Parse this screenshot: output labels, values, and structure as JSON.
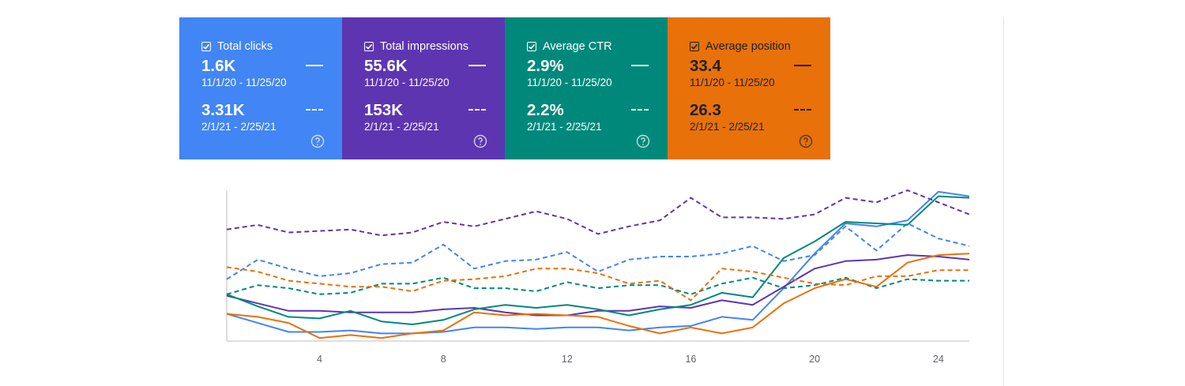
{
  "cards": [
    {
      "title": "Total clicks",
      "color": "#4285f4",
      "dark": false,
      "current_value": "1.6K",
      "current_range": "11/1/20 - 11/25/20",
      "previous_value": "3.31K",
      "previous_range": "2/1/21 - 2/25/21"
    },
    {
      "title": "Total impressions",
      "color": "#5e35b1",
      "dark": false,
      "current_value": "55.6K",
      "current_range": "11/1/20 - 11/25/20",
      "previous_value": "153K",
      "previous_range": "2/1/21 - 2/25/21"
    },
    {
      "title": "Average CTR",
      "color": "#00897b",
      "dark": false,
      "current_value": "2.9%",
      "current_range": "11/1/20 - 11/25/20",
      "previous_value": "2.2%",
      "previous_range": "2/1/21 - 2/25/21"
    },
    {
      "title": "Average position",
      "color": "#e8710a",
      "dark": true,
      "current_value": "33.4",
      "current_range": "11/1/20 - 11/25/20",
      "previous_value": "26.3",
      "previous_range": "2/1/21 - 2/25/21"
    }
  ],
  "chart_data": {
    "type": "line",
    "x": [
      1,
      2,
      3,
      4,
      5,
      6,
      7,
      8,
      9,
      10,
      11,
      12,
      13,
      14,
      15,
      16,
      17,
      18,
      19,
      20,
      21,
      22,
      23,
      24,
      25
    ],
    "xticks": [
      "4",
      "8",
      "12",
      "16",
      "20",
      "24"
    ],
    "xtick_values": [
      4,
      8,
      12,
      16,
      20,
      24
    ],
    "ylim": [
      0,
      100
    ],
    "grid": false,
    "series": [
      {
        "metric": "clicks",
        "period": "current",
        "color": "#4285f4",
        "dashed": false,
        "values": [
          18,
          12,
          6,
          6,
          7,
          5,
          5,
          6,
          9,
          9,
          8,
          9,
          9,
          7,
          9,
          10,
          16,
          14,
          35,
          58,
          78,
          76,
          80,
          99,
          96
        ]
      },
      {
        "metric": "clicks",
        "period": "previous",
        "color": "#4285f4",
        "dashed": true,
        "values": [
          41,
          54,
          48,
          43,
          45,
          51,
          52,
          64,
          48,
          53,
          54,
          59,
          46,
          54,
          56,
          56,
          58,
          63,
          53,
          57,
          76,
          60,
          78,
          68,
          63
        ]
      },
      {
        "metric": "impressions",
        "period": "current",
        "color": "#5e35b1",
        "dashed": false,
        "values": [
          30,
          25,
          20,
          20,
          19,
          19,
          19,
          21,
          22,
          19,
          17,
          17,
          20,
          20,
          23,
          22,
          27,
          24,
          36,
          48,
          53,
          54,
          57,
          56,
          54
        ]
      },
      {
        "metric": "impressions",
        "period": "previous",
        "color": "#5e35b1",
        "dashed": true,
        "values": [
          74,
          77,
          72,
          73,
          74,
          70,
          72,
          79,
          76,
          81,
          86,
          81,
          71,
          76,
          80,
          95,
          82,
          82,
          81,
          84,
          95,
          92,
          100,
          92,
          84
        ]
      },
      {
        "metric": "ctr",
        "period": "current",
        "color": "#00897b",
        "dashed": false,
        "values": [
          31,
          23,
          16,
          15,
          20,
          13,
          11,
          14,
          21,
          24,
          22,
          24,
          21,
          17,
          21,
          24,
          32,
          29,
          55,
          66,
          79,
          78,
          77,
          96,
          95
        ]
      },
      {
        "metric": "ctr",
        "period": "previous",
        "color": "#00897b",
        "dashed": true,
        "values": [
          31,
          37,
          35,
          31,
          32,
          38,
          38,
          42,
          35,
          35,
          33,
          39,
          35,
          37,
          37,
          31,
          38,
          42,
          35,
          37,
          42,
          35,
          41,
          40,
          40
        ]
      },
      {
        "metric": "position",
        "period": "current",
        "color": "#e8710a",
        "dashed": false,
        "values": [
          18,
          16,
          12,
          2,
          4,
          2,
          5,
          7,
          19,
          17,
          18,
          17,
          16,
          10,
          5,
          9,
          5,
          9,
          25,
          35,
          41,
          36,
          52,
          57,
          58
        ]
      },
      {
        "metric": "position",
        "period": "previous",
        "color": "#e8710a",
        "dashed": true,
        "values": [
          49,
          46,
          40,
          38,
          36,
          36,
          33,
          40,
          41,
          43,
          48,
          48,
          45,
          38,
          40,
          27,
          48,
          46,
          42,
          38,
          37,
          43,
          43,
          47,
          47
        ]
      }
    ]
  }
}
